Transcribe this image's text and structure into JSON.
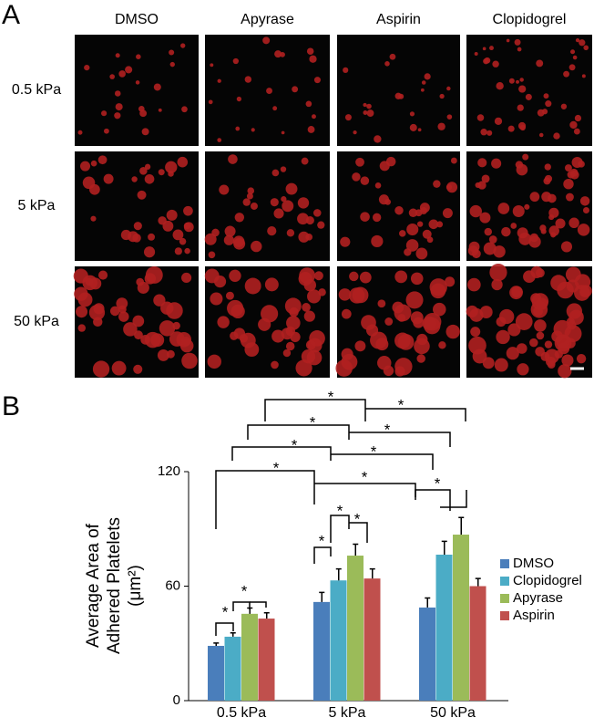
{
  "panel_a": {
    "label": "A",
    "columns": [
      "DMSO",
      "Apyrase",
      "Aspirin",
      "Clopidogrel"
    ],
    "rows": [
      "0.5 kPa",
      "5 kPa",
      "50 kPa"
    ]
  },
  "chart_data": {
    "type": "bar",
    "label": "B",
    "ylabel_lines": [
      "Average Area of",
      "Adhered Platelets",
      "(μm²)"
    ],
    "categories": [
      "0.5 kPa",
      "5 kPa",
      "50 kPa"
    ],
    "series": [
      {
        "name": "DMSO",
        "color": "#4a7ebb",
        "values": [
          28.7,
          51.7,
          48.8
        ],
        "errors": [
          1.5,
          5,
          5
        ]
      },
      {
        "name": "Clopidogrel",
        "color": "#4bacc6",
        "values": [
          33.5,
          63,
          76.5
        ],
        "errors": [
          2,
          6,
          7
        ]
      },
      {
        "name": "Apyrase",
        "color": "#9bbb59",
        "values": [
          45.5,
          76,
          87
        ],
        "errors": [
          3,
          6,
          9
        ]
      },
      {
        "name": "Aspirin",
        "color": "#c0504d",
        "values": [
          43,
          64,
          60
        ],
        "errors": [
          3,
          5,
          4
        ]
      }
    ],
    "ylim": [
      0,
      120
    ],
    "yticks": [
      0,
      60,
      120
    ],
    "legend": "right",
    "annotations": [
      "*",
      "*",
      "*",
      "*",
      "*",
      "*",
      "*",
      "*",
      "*",
      "*",
      "*",
      "*",
      "*",
      "*"
    ]
  }
}
